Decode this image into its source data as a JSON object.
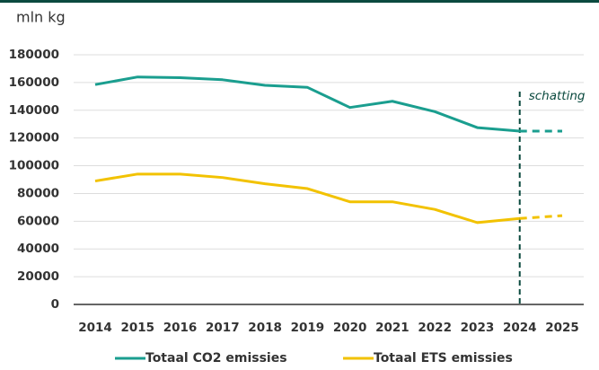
{
  "chart_data": {
    "type": "line",
    "y_axis_label": "mln kg",
    "categories": [
      "2014",
      "2015",
      "2016",
      "2017",
      "2018",
      "2019",
      "2020",
      "2021",
      "2022",
      "2023",
      "2024",
      "2025"
    ],
    "series": [
      {
        "name": "Totaal CO2 emissies",
        "color": "#1a9e8f",
        "values": [
          158500,
          164000,
          163500,
          162000,
          158000,
          156500,
          142000,
          146500,
          139000,
          127500,
          125000,
          125000
        ]
      },
      {
        "name": "Totaal ETS emissies",
        "color": "#f2c200",
        "values": [
          89000,
          94000,
          94000,
          91500,
          87000,
          83500,
          74000,
          74000,
          68500,
          59000,
          62000,
          64000
        ]
      }
    ],
    "annotation": {
      "text": "schatting",
      "x": "2024"
    },
    "ylim": [
      0,
      180000
    ],
    "yticks": [
      0,
      20000,
      40000,
      60000,
      80000,
      100000,
      120000,
      140000,
      160000,
      180000
    ],
    "grid": true,
    "legend": "bottom"
  }
}
